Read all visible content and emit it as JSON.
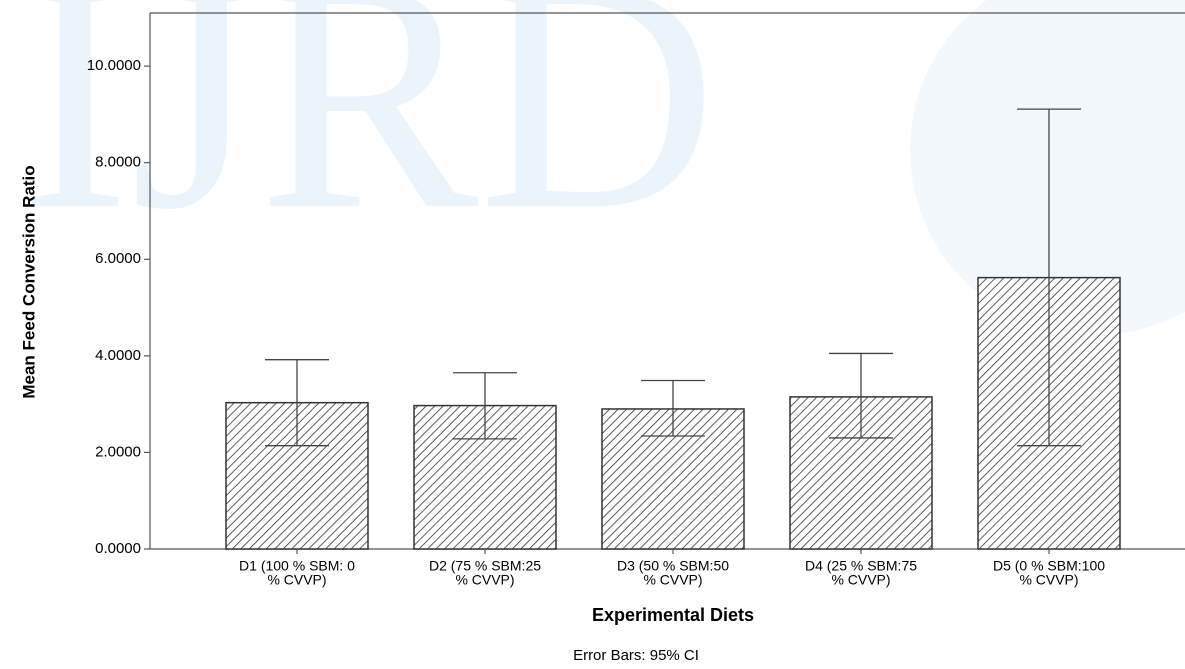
{
  "chart_data": {
    "type": "bar",
    "watermark": "IJRD",
    "y_label": "Mean Feed Conversion Ratio",
    "x_label": "Experimental Diets",
    "note": "Error Bars: 95% CI",
    "categories": [
      [
        "D1 (100 % SBM: 0",
        "% CVVP)"
      ],
      [
        "D2 (75 % SBM:25",
        "% CVVP)"
      ],
      [
        "D3 (50 % SBM:50",
        "% CVVP)"
      ],
      [
        "D4 (25 % SBM:75",
        "% CVVP)"
      ],
      [
        "D5 (0 % SBM:100",
        "% CVVP)"
      ]
    ],
    "values": [
      3.03,
      2.97,
      2.9,
      3.15,
      5.62
    ],
    "ci_lower": [
      2.14,
      2.28,
      2.34,
      2.3,
      2.14
    ],
    "ci_upper": [
      3.92,
      3.65,
      3.49,
      4.05,
      9.11
    ],
    "color": "#333333",
    "ylim": [
      0,
      11.1
    ],
    "yticks": [
      {
        "value": 0,
        "label": "0.0000"
      },
      {
        "value": 2,
        "label": "2.0000"
      },
      {
        "value": 4,
        "label": "4.0000"
      },
      {
        "value": 6,
        "label": "6.0000"
      },
      {
        "value": 8,
        "label": "8.0000"
      },
      {
        "value": 10,
        "label": "10.0000"
      }
    ],
    "grid": false
  }
}
